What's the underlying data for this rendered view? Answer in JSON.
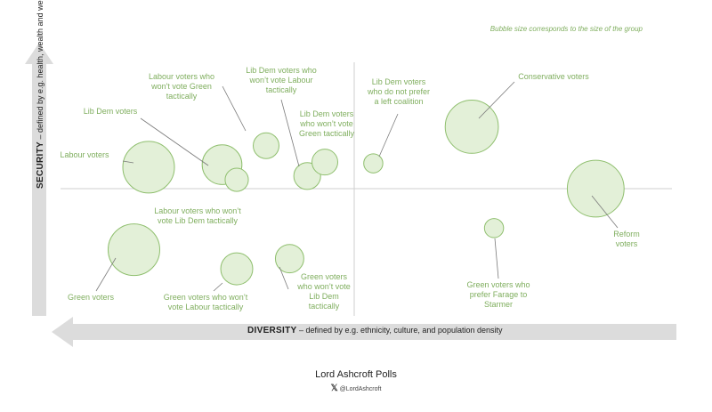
{
  "note": "Bubble size corresponds to the size of the group",
  "footer": {
    "title": "Lord Ashcroft Polls",
    "x_icon": "x-logo-icon",
    "handle": "@LordAshcroft"
  },
  "axes": {
    "y_strong": "SECURITY",
    "y_rest": " – defined by e.g. health, wealth and wellbeing",
    "x_strong": "DIVERSITY",
    "x_rest": " – defined by e.g. ethnicity, culture, and population density"
  },
  "colors": {
    "bubble_fill": "#e3f0d8",
    "bubble_stroke": "#8fbf6e",
    "label": "#7fae5e",
    "arrow": "#dcdcdc",
    "crosshair": "#cfcfcf"
  },
  "chart_data": {
    "type": "scatter",
    "title": "",
    "xlabel": "DIVERSITY – defined by e.g. ethnicity, culture, and population density",
    "ylabel": "SECURITY – defined by e.g. health, wealth and wellbeing",
    "xlim": [
      -10,
      10
    ],
    "ylim": [
      -10,
      10
    ],
    "points": [
      {
        "label": "Labour voters",
        "x": -7.0,
        "y": 1.7,
        "size": 1.0
      },
      {
        "label": "Lib Dem voters",
        "x": -4.5,
        "y": 1.9,
        "size": 0.77
      },
      {
        "label": "Labour voters who won't vote Green tactically",
        "x": -3.0,
        "y": 3.4,
        "size": 0.5
      },
      {
        "label": "Labour voters who won't vote Lib Dem tactically",
        "x": -4.0,
        "y": 0.7,
        "size": 0.45
      },
      {
        "label": "Lib Dem voters who won't vote Labour tactically",
        "x": -1.6,
        "y": 1.0,
        "size": 0.52
      },
      {
        "label": "Lib Dem voters who won't vote Green tactically",
        "x": -1.0,
        "y": 2.1,
        "size": 0.5
      },
      {
        "label": "Lib Dem voters who do not prefer a left coalition",
        "x": 0.6,
        "y": 2.0,
        "size": 0.37
      },
      {
        "label": "Conservative voters",
        "x": 3.7,
        "y": 4.9,
        "size": 1.03
      },
      {
        "label": "Reform voters",
        "x": 7.6,
        "y": 0.0,
        "size": 1.1
      },
      {
        "label": "Green voters who prefer Farage to Starmer",
        "x": 4.4,
        "y": -3.1,
        "size": 0.37
      },
      {
        "label": "Green voters",
        "x": -7.5,
        "y": -4.8,
        "size": 1.0
      },
      {
        "label": "Green voters who won't vote Labour tactically",
        "x": -4.0,
        "y": -6.3,
        "size": 0.62
      },
      {
        "label": "Green voters who won't vote Lib Dem tactically",
        "x": -2.2,
        "y": -5.5,
        "size": 0.55
      }
    ]
  }
}
